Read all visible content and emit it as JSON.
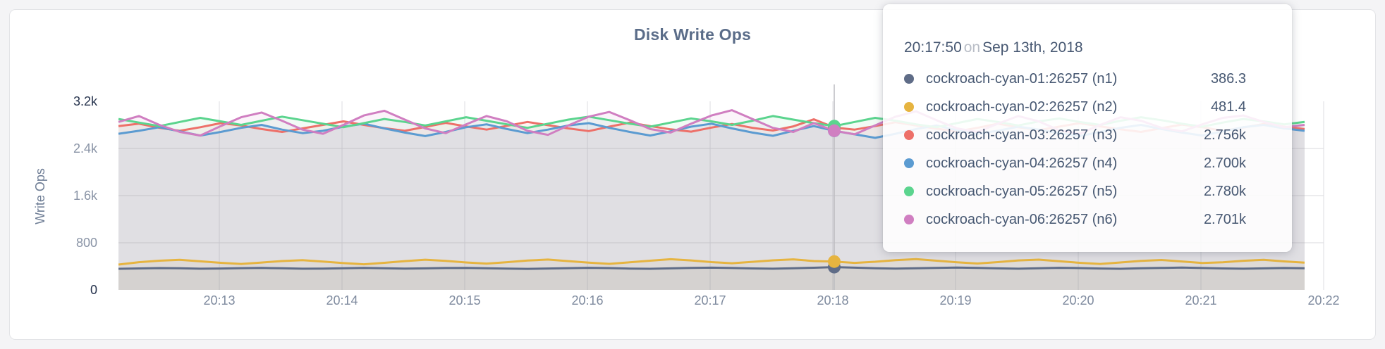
{
  "panel": {
    "title": "Disk Write Ops"
  },
  "tooltip": {
    "time": "20:17:50",
    "connector": "on",
    "date": "Sep 13th, 2018",
    "rows": [
      {
        "label": "cockroach-cyan-01:26257 (n1)",
        "value": "386.3"
      },
      {
        "label": "cockroach-cyan-02:26257 (n2)",
        "value": "481.4"
      },
      {
        "label": "cockroach-cyan-03:26257 (n3)",
        "value": "2.756k"
      },
      {
        "label": "cockroach-cyan-04:26257 (n4)",
        "value": "2.700k"
      },
      {
        "label": "cockroach-cyan-05:26257 (n5)",
        "value": "2.780k"
      },
      {
        "label": "cockroach-cyan-06:26257 (n6)",
        "value": "2.701k"
      }
    ]
  },
  "chart_data": {
    "type": "line",
    "title": "Disk Write Ops",
    "ylabel": "Write Ops",
    "xlabel": "",
    "ylim": [
      0,
      3200
    ],
    "y_ticks": [
      "3.2k",
      "2.4k",
      "1.6k",
      "800",
      "0"
    ],
    "y_tick_values": [
      3200,
      2400,
      1600,
      800,
      0
    ],
    "grid_values": [
      800,
      1600,
      2400
    ],
    "x_ticks": [
      "20:13",
      "20:14",
      "20:15",
      "20:16",
      "20:17",
      "20:18",
      "20:19",
      "20:20",
      "20:21",
      "20:22"
    ],
    "x_start": "20:12:10",
    "x_interval_seconds": 10,
    "legend_position": "tooltip",
    "grid": true,
    "hover": {
      "index": 35,
      "time": "20:17:50",
      "date": "Sep 13th, 2018"
    },
    "series": [
      {
        "name": "cockroach-cyan-01:26257 (n1)",
        "color": "#5F6C87",
        "hover_value": 386.3,
        "values": [
          358,
          364,
          370,
          366,
          360,
          363,
          369,
          372,
          366,
          359,
          362,
          368,
          373,
          367,
          361,
          365,
          371,
          374,
          368,
          361,
          357,
          363,
          369,
          375,
          370,
          362,
          358,
          365,
          372,
          377,
          371,
          364,
          359,
          367,
          376,
          386.3,
          377,
          368,
          361,
          366,
          374,
          380,
          373,
          365,
          360,
          368,
          375,
          370,
          363,
          358,
          366,
          373,
          378,
          371,
          364,
          359,
          365,
          371,
          367
        ]
      },
      {
        "name": "cockroach-cyan-02:26257 (n2)",
        "color": "#E6B440",
        "hover_value": 481.4,
        "values": [
          430,
          470,
          495,
          510,
          485,
          460,
          440,
          465,
          490,
          505,
          480,
          455,
          435,
          460,
          488,
          512,
          492,
          466,
          446,
          470,
          498,
          515,
          488,
          462,
          442,
          468,
          495,
          520,
          500,
          472,
          452,
          476,
          502,
          518,
          490,
          481.4,
          458,
          478,
          505,
          522,
          496,
          468,
          448,
          472,
          500,
          514,
          486,
          460,
          440,
          466,
          492,
          508,
          482,
          456,
          468,
          494,
          510,
          484,
          462
        ]
      },
      {
        "name": "cockroach-cyan-03:26257 (n3)",
        "color": "#ED7069",
        "hover_value": 2756,
        "values": [
          2780,
          2820,
          2750,
          2700,
          2760,
          2830,
          2790,
          2730,
          2680,
          2740,
          2800,
          2860,
          2800,
          2745,
          2700,
          2765,
          2835,
          2775,
          2720,
          2785,
          2850,
          2795,
          2740,
          2695,
          2770,
          2840,
          2780,
          2725,
          2685,
          2755,
          2815,
          2750,
          2705,
          2775,
          2895,
          2756,
          2720,
          2780,
          2845,
          2790,
          2735,
          2690,
          2750,
          2820,
          2760,
          2710,
          2770,
          2830,
          2775,
          2725,
          2680,
          2745,
          2805,
          2760,
          2700,
          2755,
          2815,
          2770,
          2730
        ]
      },
      {
        "name": "cockroach-cyan-04:26257 (n4)",
        "color": "#5B9BD1",
        "hover_value": 2700,
        "values": [
          2650,
          2700,
          2760,
          2690,
          2620,
          2680,
          2750,
          2800,
          2720,
          2660,
          2700,
          2770,
          2820,
          2740,
          2670,
          2610,
          2680,
          2760,
          2810,
          2730,
          2660,
          2720,
          2790,
          2830,
          2750,
          2680,
          2620,
          2690,
          2770,
          2820,
          2740,
          2670,
          2615,
          2700,
          2780,
          2700,
          2640,
          2580,
          2650,
          2730,
          2790,
          2710,
          2650,
          2700,
          2770,
          2720,
          2660,
          2610,
          2680,
          2750,
          2800,
          2730,
          2670,
          2620,
          2690,
          2760,
          2800,
          2740,
          2700
        ]
      },
      {
        "name": "cockroach-cyan-05:26257 (n5)",
        "color": "#5BD48E",
        "hover_value": 2780,
        "values": [
          2900,
          2840,
          2780,
          2850,
          2920,
          2860,
          2800,
          2870,
          2940,
          2880,
          2820,
          2760,
          2830,
          2900,
          2850,
          2790,
          2860,
          2930,
          2870,
          2810,
          2750,
          2820,
          2890,
          2940,
          2880,
          2820,
          2770,
          2840,
          2910,
          2860,
          2800,
          2870,
          2950,
          2890,
          2830,
          2780,
          2850,
          2920,
          2870,
          2810,
          2760,
          2830,
          2900,
          2850,
          2790,
          2860,
          2910,
          2850,
          2800,
          2870,
          2930,
          2880,
          2820,
          2770,
          2840,
          2900,
          2860,
          2810,
          2850
        ]
      },
      {
        "name": "cockroach-cyan-06:26257 (n6)",
        "color": "#D07EC1",
        "hover_value": 2701,
        "values": [
          2850,
          2950,
          2800,
          2680,
          2620,
          2780,
          2930,
          3010,
          2870,
          2720,
          2650,
          2800,
          2960,
          3040,
          2890,
          2740,
          2660,
          2810,
          2950,
          2860,
          2700,
          2630,
          2790,
          2940,
          3020,
          2880,
          2730,
          2670,
          2820,
          2960,
          3050,
          2900,
          2750,
          2680,
          2830,
          2701,
          2640,
          2790,
          2940,
          3030,
          2880,
          2740,
          2680,
          2820,
          2950,
          2860,
          2710,
          2650,
          2800,
          2930,
          2870,
          2750,
          2690,
          2810,
          2920,
          2960,
          2850,
          2760,
          2800
        ]
      }
    ]
  }
}
